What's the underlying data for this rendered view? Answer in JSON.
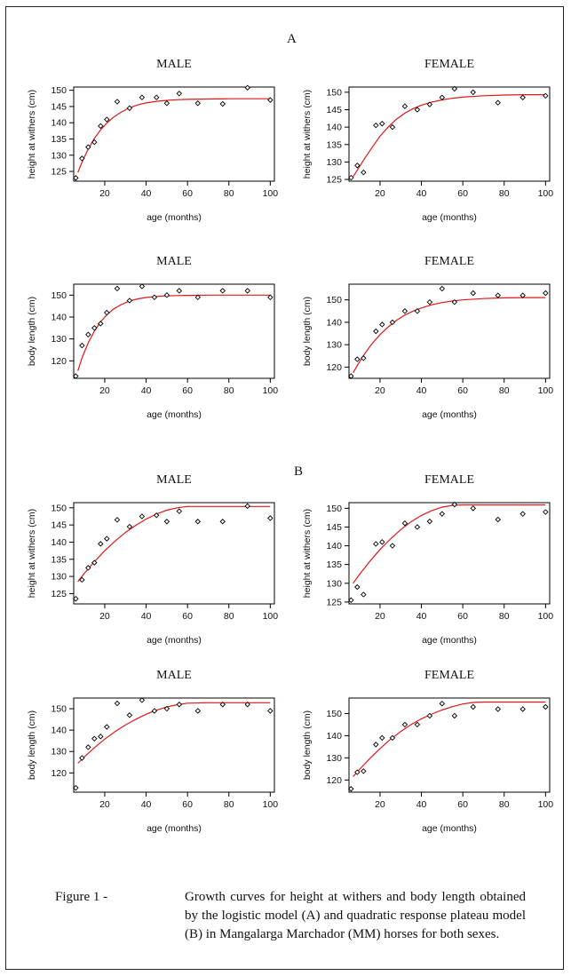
{
  "panel_labels": {
    "a": "A",
    "b": "B"
  },
  "caption": {
    "lead": "Figure 1 -",
    "text": "Growth curves for height at withers and body length obtained by the logistic model (A) and quadratic response plateau model (B) in Mangalarga Marchador (MM) horses for both sexes."
  },
  "colors": {
    "fit": "#e01818",
    "points": "#000000",
    "axes": "#000000"
  },
  "chart_data": [
    {
      "type": "scatter",
      "panel": "A",
      "title": "MALE",
      "xlabel": "age (months)",
      "ylabel": "height at withers  (cm)",
      "xlim": [
        5,
        102
      ],
      "ylim": [
        122,
        151
      ],
      "xticks": [
        20,
        40,
        60,
        80,
        100
      ],
      "yticks": [
        125,
        130,
        135,
        140,
        145,
        150
      ],
      "points": [
        [
          6,
          123
        ],
        [
          9,
          129
        ],
        [
          12,
          132.5
        ],
        [
          15,
          134
        ],
        [
          18,
          139
        ],
        [
          21,
          141
        ],
        [
          26,
          146.5
        ],
        [
          32,
          144.5
        ],
        [
          38,
          147.8
        ],
        [
          45,
          147.8
        ],
        [
          50,
          146
        ],
        [
          56,
          149
        ],
        [
          65,
          146
        ],
        [
          77,
          145.8
        ],
        [
          89,
          150.8
        ],
        [
          100,
          147
        ]
      ],
      "fit": {
        "model": "logistic",
        "x": [
          7,
          9,
          12,
          15,
          18,
          21,
          24,
          28,
          32,
          36,
          40,
          45,
          50,
          55,
          60,
          70,
          80,
          90,
          100
        ],
        "y": [
          124.7,
          127.8,
          131.9,
          135.2,
          137.8,
          139.9,
          141.6,
          143.3,
          144.6,
          145.5,
          146.1,
          146.6,
          146.9,
          147.1,
          147.2,
          147.3,
          147.4,
          147.4,
          147.4
        ]
      }
    },
    {
      "type": "scatter",
      "panel": "A",
      "title": "FEMALE",
      "xlabel": "age (months)",
      "ylabel": "height at withers  (cm)",
      "xlim": [
        5,
        102
      ],
      "ylim": [
        124.5,
        151.5
      ],
      "xticks": [
        20,
        40,
        60,
        80,
        100
      ],
      "yticks": [
        125,
        130,
        135,
        140,
        145,
        150
      ],
      "points": [
        [
          6,
          125.5
        ],
        [
          9,
          129
        ],
        [
          12,
          127
        ],
        [
          18,
          140.5
        ],
        [
          21,
          141
        ],
        [
          26,
          140
        ],
        [
          32,
          146
        ],
        [
          38,
          145
        ],
        [
          44,
          146.5
        ],
        [
          50,
          148.5
        ],
        [
          56,
          151
        ],
        [
          65,
          150
        ],
        [
          77,
          147
        ],
        [
          89,
          148.5
        ],
        [
          100,
          149
        ]
      ],
      "fit": {
        "model": "logistic",
        "x": [
          7,
          10,
          13,
          16,
          20,
          24,
          28,
          32,
          36,
          40,
          45,
          50,
          55,
          60,
          70,
          80,
          90,
          100
        ],
        "y": [
          125.8,
          128.6,
          131.4,
          134,
          137.4,
          140.1,
          142.3,
          144,
          145.3,
          146.3,
          147.2,
          147.8,
          148.3,
          148.6,
          149,
          149.2,
          149.3,
          149.3
        ]
      }
    },
    {
      "type": "scatter",
      "panel": "A",
      "title": "MALE",
      "xlabel": "age (months)",
      "ylabel": "body length (cm)",
      "xlim": [
        5,
        102
      ],
      "ylim": [
        112,
        155
      ],
      "xticks": [
        20,
        40,
        60,
        80,
        100
      ],
      "yticks": [
        120,
        130,
        140,
        150
      ],
      "points": [
        [
          6,
          113
        ],
        [
          9,
          127
        ],
        [
          12,
          132
        ],
        [
          15,
          135
        ],
        [
          18,
          137
        ],
        [
          21,
          142
        ],
        [
          26,
          153
        ],
        [
          32,
          147.5
        ],
        [
          38,
          154
        ],
        [
          44,
          149
        ],
        [
          50,
          150
        ],
        [
          56,
          152
        ],
        [
          65,
          149
        ],
        [
          77,
          152
        ],
        [
          89,
          152
        ],
        [
          100,
          149
        ]
      ],
      "fit": {
        "model": "logistic",
        "x": [
          7,
          9,
          12,
          15,
          18,
          21,
          24,
          28,
          32,
          36,
          40,
          45,
          50,
          55,
          60,
          70,
          80,
          90,
          100
        ],
        "y": [
          115.4,
          121.3,
          128.2,
          133.6,
          137.8,
          141,
          143.5,
          145.7,
          147.3,
          148.3,
          148.9,
          149.4,
          149.7,
          149.8,
          149.9,
          150,
          150,
          150,
          150
        ]
      }
    },
    {
      "type": "scatter",
      "panel": "A",
      "title": "FEMALE",
      "xlabel": "age (months)",
      "ylabel": "body length (cm)",
      "xlim": [
        5,
        102
      ],
      "ylim": [
        115,
        157
      ],
      "xticks": [
        20,
        40,
        60,
        80,
        100
      ],
      "yticks": [
        120,
        130,
        140,
        150
      ],
      "points": [
        [
          6,
          116
        ],
        [
          9,
          123.5
        ],
        [
          12,
          124
        ],
        [
          18,
          136
        ],
        [
          21,
          139
        ],
        [
          26,
          140
        ],
        [
          32,
          145
        ],
        [
          38,
          145
        ],
        [
          44,
          149
        ],
        [
          50,
          155
        ],
        [
          56,
          149
        ],
        [
          65,
          153
        ],
        [
          77,
          152
        ],
        [
          89,
          152
        ],
        [
          100,
          153
        ]
      ],
      "fit": {
        "model": "logistic",
        "x": [
          7,
          10,
          13,
          16,
          20,
          24,
          28,
          32,
          36,
          40,
          45,
          50,
          55,
          60,
          70,
          80,
          90,
          100
        ],
        "y": [
          117.5,
          122.2,
          126.5,
          130.3,
          134.5,
          138,
          140.9,
          143.2,
          145,
          146.4,
          147.8,
          148.8,
          149.5,
          150,
          150.6,
          150.9,
          151,
          151
        ]
      }
    },
    {
      "type": "scatter",
      "panel": "B",
      "title": "MALE",
      "xlabel": "age (months)",
      "ylabel": "height at withers (cm)",
      "xlim": [
        5,
        102
      ],
      "ylim": [
        122,
        151.5
      ],
      "xticks": [
        20,
        40,
        60,
        80,
        100
      ],
      "yticks": [
        125,
        130,
        135,
        140,
        145,
        150
      ],
      "points": [
        [
          6,
          123.5
        ],
        [
          9,
          129
        ],
        [
          12,
          132.5
        ],
        [
          15,
          134
        ],
        [
          18,
          139.5
        ],
        [
          21,
          141
        ],
        [
          26,
          146.5
        ],
        [
          32,
          144.5
        ],
        [
          38,
          147.5
        ],
        [
          45,
          147.8
        ],
        [
          50,
          146
        ],
        [
          56,
          149
        ],
        [
          65,
          146
        ],
        [
          77,
          146
        ],
        [
          89,
          150.5
        ],
        [
          100,
          147
        ]
      ],
      "fit": {
        "model": "quadratic-plateau",
        "x": [
          7,
          10,
          15,
          20,
          25,
          30,
          35,
          40,
          45,
          50,
          55,
          60,
          70,
          80,
          90,
          100
        ],
        "y": [
          128.5,
          130.8,
          134.3,
          137.5,
          140.3,
          142.8,
          144.9,
          146.7,
          148.2,
          149.3,
          150,
          150.4,
          150.4,
          150.4,
          150.4,
          150.4
        ]
      }
    },
    {
      "type": "scatter",
      "panel": "B",
      "title": "FEMALE",
      "xlabel": "age (months)",
      "ylabel": "height at withers (cm)",
      "xlim": [
        5,
        102
      ],
      "ylim": [
        124.5,
        151.5
      ],
      "xticks": [
        20,
        40,
        60,
        80,
        100
      ],
      "yticks": [
        125,
        130,
        135,
        140,
        145,
        150
      ],
      "points": [
        [
          6,
          125.5
        ],
        [
          9,
          129
        ],
        [
          12,
          127
        ],
        [
          18,
          140.5
        ],
        [
          21,
          141
        ],
        [
          26,
          140
        ],
        [
          32,
          146
        ],
        [
          38,
          145
        ],
        [
          44,
          146.5
        ],
        [
          50,
          148.5
        ],
        [
          56,
          151
        ],
        [
          65,
          150
        ],
        [
          77,
          147
        ],
        [
          89,
          148.5
        ],
        [
          100,
          149
        ]
      ],
      "fit": {
        "model": "quadratic-plateau",
        "x": [
          7,
          10,
          15,
          20,
          25,
          30,
          35,
          40,
          45,
          50,
          55,
          60,
          70,
          80,
          90,
          100
        ],
        "y": [
          130,
          132.3,
          135.8,
          139,
          141.8,
          144.3,
          146.4,
          148.1,
          149.4,
          150.3,
          150.8,
          150.9,
          150.9,
          150.9,
          150.9,
          150.9
        ]
      }
    },
    {
      "type": "scatter",
      "panel": "B",
      "title": "MALE",
      "xlabel": "age (months)",
      "ylabel": "body length (cm)",
      "xlim": [
        5,
        102
      ],
      "ylim": [
        111,
        155
      ],
      "xticks": [
        20,
        40,
        60,
        80,
        100
      ],
      "yticks": [
        120,
        130,
        140,
        150
      ],
      "points": [
        [
          6,
          113
        ],
        [
          9,
          127
        ],
        [
          12,
          132
        ],
        [
          15,
          136
        ],
        [
          18,
          137
        ],
        [
          21,
          141.5
        ],
        [
          26,
          152.5
        ],
        [
          32,
          147
        ],
        [
          38,
          154
        ],
        [
          44,
          149
        ],
        [
          50,
          150
        ],
        [
          56,
          152
        ],
        [
          65,
          149
        ],
        [
          77,
          152
        ],
        [
          89,
          152
        ],
        [
          100,
          149
        ]
      ],
      "fit": {
        "model": "quadratic-plateau",
        "x": [
          7,
          10,
          15,
          20,
          25,
          30,
          35,
          40,
          45,
          50,
          55,
          60,
          70,
          80,
          90,
          100
        ],
        "y": [
          124.5,
          127.4,
          131.8,
          135.8,
          139.3,
          142.4,
          145.1,
          147.4,
          149.3,
          150.8,
          151.9,
          152.6,
          152.8,
          152.8,
          152.8,
          152.8
        ]
      }
    },
    {
      "type": "scatter",
      "panel": "B",
      "title": "FEMALE",
      "xlabel": "age (months)",
      "ylabel": "body length (cm)",
      "xlim": [
        5,
        102
      ],
      "ylim": [
        114.5,
        157
      ],
      "xticks": [
        20,
        40,
        60,
        80,
        100
      ],
      "yticks": [
        120,
        130,
        140,
        150
      ],
      "points": [
        [
          6,
          116
        ],
        [
          9,
          123.5
        ],
        [
          12,
          124
        ],
        [
          18,
          136
        ],
        [
          21,
          139
        ],
        [
          26,
          139
        ],
        [
          32,
          145
        ],
        [
          38,
          145
        ],
        [
          44,
          149
        ],
        [
          50,
          154.5
        ],
        [
          56,
          149
        ],
        [
          65,
          153
        ],
        [
          77,
          152
        ],
        [
          89,
          152
        ],
        [
          100,
          153
        ]
      ],
      "fit": {
        "model": "quadratic-plateau",
        "x": [
          7,
          10,
          15,
          20,
          25,
          30,
          35,
          40,
          45,
          50,
          55,
          60,
          65,
          70,
          80,
          90,
          100
        ],
        "y": [
          121.5,
          124.7,
          129.6,
          134.2,
          138.3,
          141.9,
          145,
          147.6,
          149.8,
          151.6,
          153.1,
          154.3,
          155,
          155.2,
          155.2,
          155.2,
          155.2
        ]
      }
    }
  ]
}
